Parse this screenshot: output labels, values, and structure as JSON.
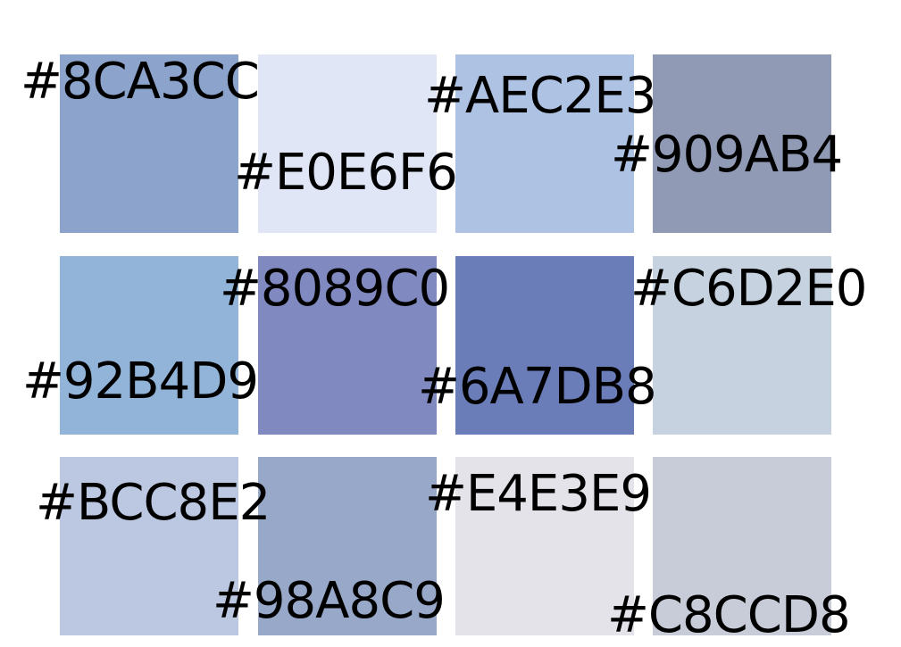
{
  "swatches": [
    {
      "label": "#8CA3CC",
      "color": "#8CA3CC"
    },
    {
      "label": "#E0E6F6",
      "color": "#E0E6F6"
    },
    {
      "label": "#AEC2E3",
      "color": "#AEC2E3"
    },
    {
      "label": "#909AB4",
      "color": "#909AB4"
    },
    {
      "label": "#92B4D9",
      "color": "#92B4D9"
    },
    {
      "label": "#8089C0",
      "color": "#8089C0"
    },
    {
      "label": "#6A7DB8",
      "color": "#6A7DB8"
    },
    {
      "label": "#C6D2E0",
      "color": "#C6D2E0"
    },
    {
      "label": "#BCC8E2",
      "color": "#BCC8E2"
    },
    {
      "label": "#98A8C9",
      "color": "#98A8C9"
    },
    {
      "label": "#E4E3E9",
      "color": "#E4E3E9"
    },
    {
      "label": "#C8CCD8",
      "color": "#C8CCD8"
    }
  ]
}
